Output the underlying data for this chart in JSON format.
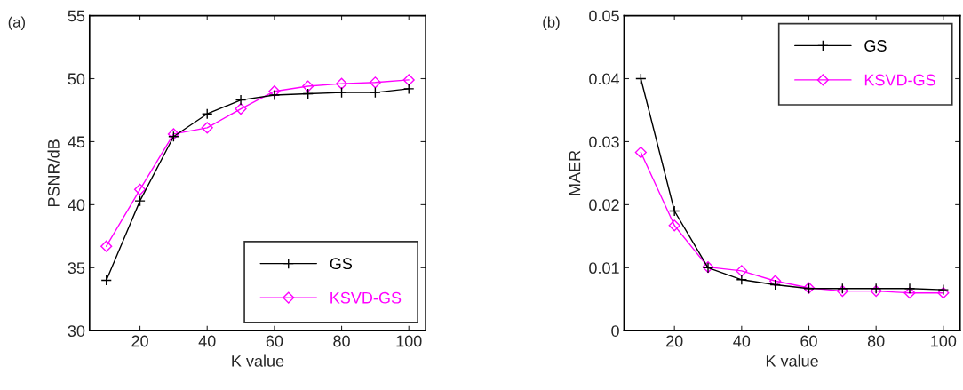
{
  "chart_data": [
    {
      "type": "line",
      "xlabel": "K value",
      "ylabel": "PSNR/dB",
      "annotations": [
        "(a)"
      ],
      "x": [
        10,
        20,
        30,
        40,
        50,
        60,
        70,
        80,
        90,
        100
      ],
      "xlim": [
        5,
        105
      ],
      "xticks": [
        20,
        40,
        60,
        80,
        100
      ],
      "ylim": [
        30,
        55
      ],
      "yticks": [
        30,
        35,
        40,
        45,
        50,
        55
      ],
      "grid": false,
      "legend": "bottom right",
      "series": [
        {
          "name": "GS",
          "color": "#000000",
          "marker": "cross",
          "values": [
            34.0,
            40.3,
            45.4,
            47.2,
            48.3,
            48.7,
            48.8,
            48.9,
            48.9,
            49.2
          ]
        },
        {
          "name": "KSVD-GS",
          "color": "#ff00ff",
          "marker": "diamond",
          "values": [
            36.7,
            41.2,
            45.6,
            46.1,
            47.6,
            49.0,
            49.4,
            49.6,
            49.7,
            49.9
          ]
        }
      ]
    },
    {
      "type": "line",
      "xlabel": "K value",
      "ylabel": "MAER",
      "annotations": [
        "(b)"
      ],
      "x": [
        10,
        20,
        30,
        40,
        50,
        60,
        70,
        80,
        90,
        100
      ],
      "xlim": [
        5,
        105
      ],
      "xticks": [
        20,
        40,
        60,
        80,
        100
      ],
      "ylim": [
        0,
        0.05
      ],
      "yticks": [
        {
          "value": 0,
          "label": "0"
        },
        0.01,
        0.02,
        0.03,
        0.04,
        0.05
      ],
      "grid": false,
      "legend": "top right",
      "series": [
        {
          "name": "GS",
          "color": "#000000",
          "marker": "cross",
          "values": [
            0.04,
            0.019,
            0.01,
            0.0081,
            0.0073,
            0.0067,
            0.0067,
            0.0067,
            0.0067,
            0.0065
          ]
        },
        {
          "name": "KSVD-GS",
          "color": "#ff00ff",
          "marker": "diamond",
          "values": [
            0.0283,
            0.0167,
            0.0101,
            0.0095,
            0.0079,
            0.0068,
            0.0063,
            0.0063,
            0.006,
            0.006
          ]
        }
      ]
    }
  ]
}
